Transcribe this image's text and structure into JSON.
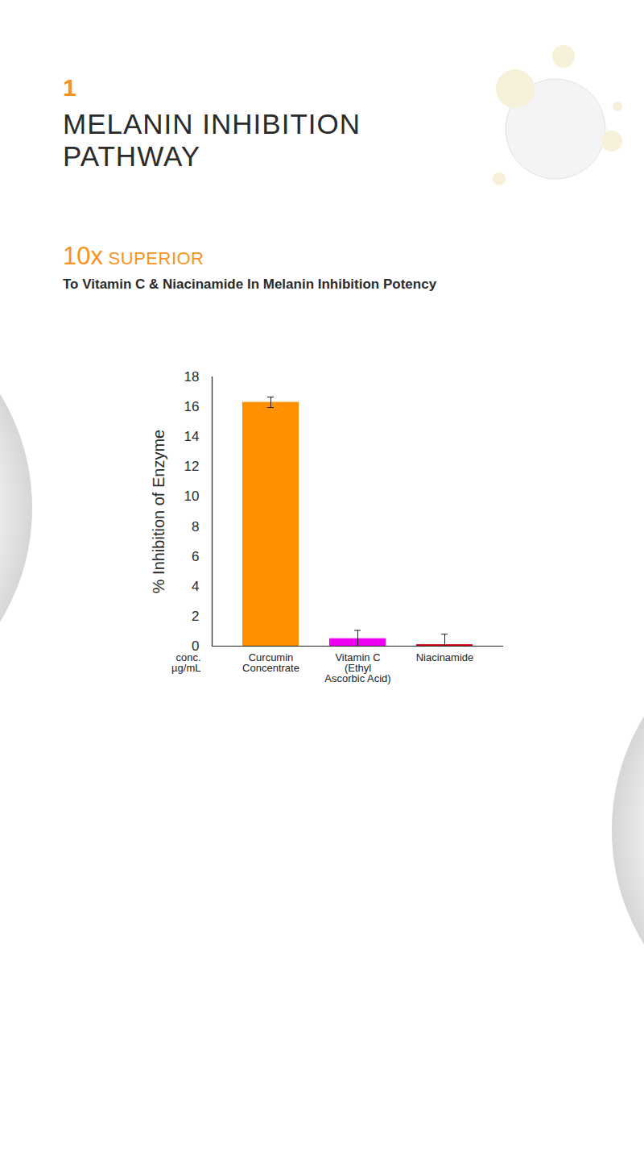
{
  "header": {
    "number": "1",
    "title": "MELANIN INHIBITION PATHWAY"
  },
  "chart_data": {
    "type": "bar",
    "title": "10x SUPERIOR",
    "subtitle": "To Vitamin C & Niacinamide In Melanin Inhibition Potency",
    "x_label": "conc. µg/mL",
    "y_label": "% Inhibition of Enzyme",
    "categories": [
      "Curcumin Concentrate",
      "Vitamin C (Ethyl Ascorbic Acid)",
      "Niacinamide"
    ],
    "values": [
      16.3,
      0.5,
      0.1
    ],
    "errors": [
      0.35,
      0.55,
      0.7
    ],
    "colors": [
      "#FF9100",
      "#F000F0",
      "#D80010"
    ],
    "ylim": [
      0,
      18
    ],
    "yticks": [
      0,
      2,
      4,
      6,
      8,
      10,
      12,
      14,
      16,
      18
    ],
    "grid": false
  }
}
